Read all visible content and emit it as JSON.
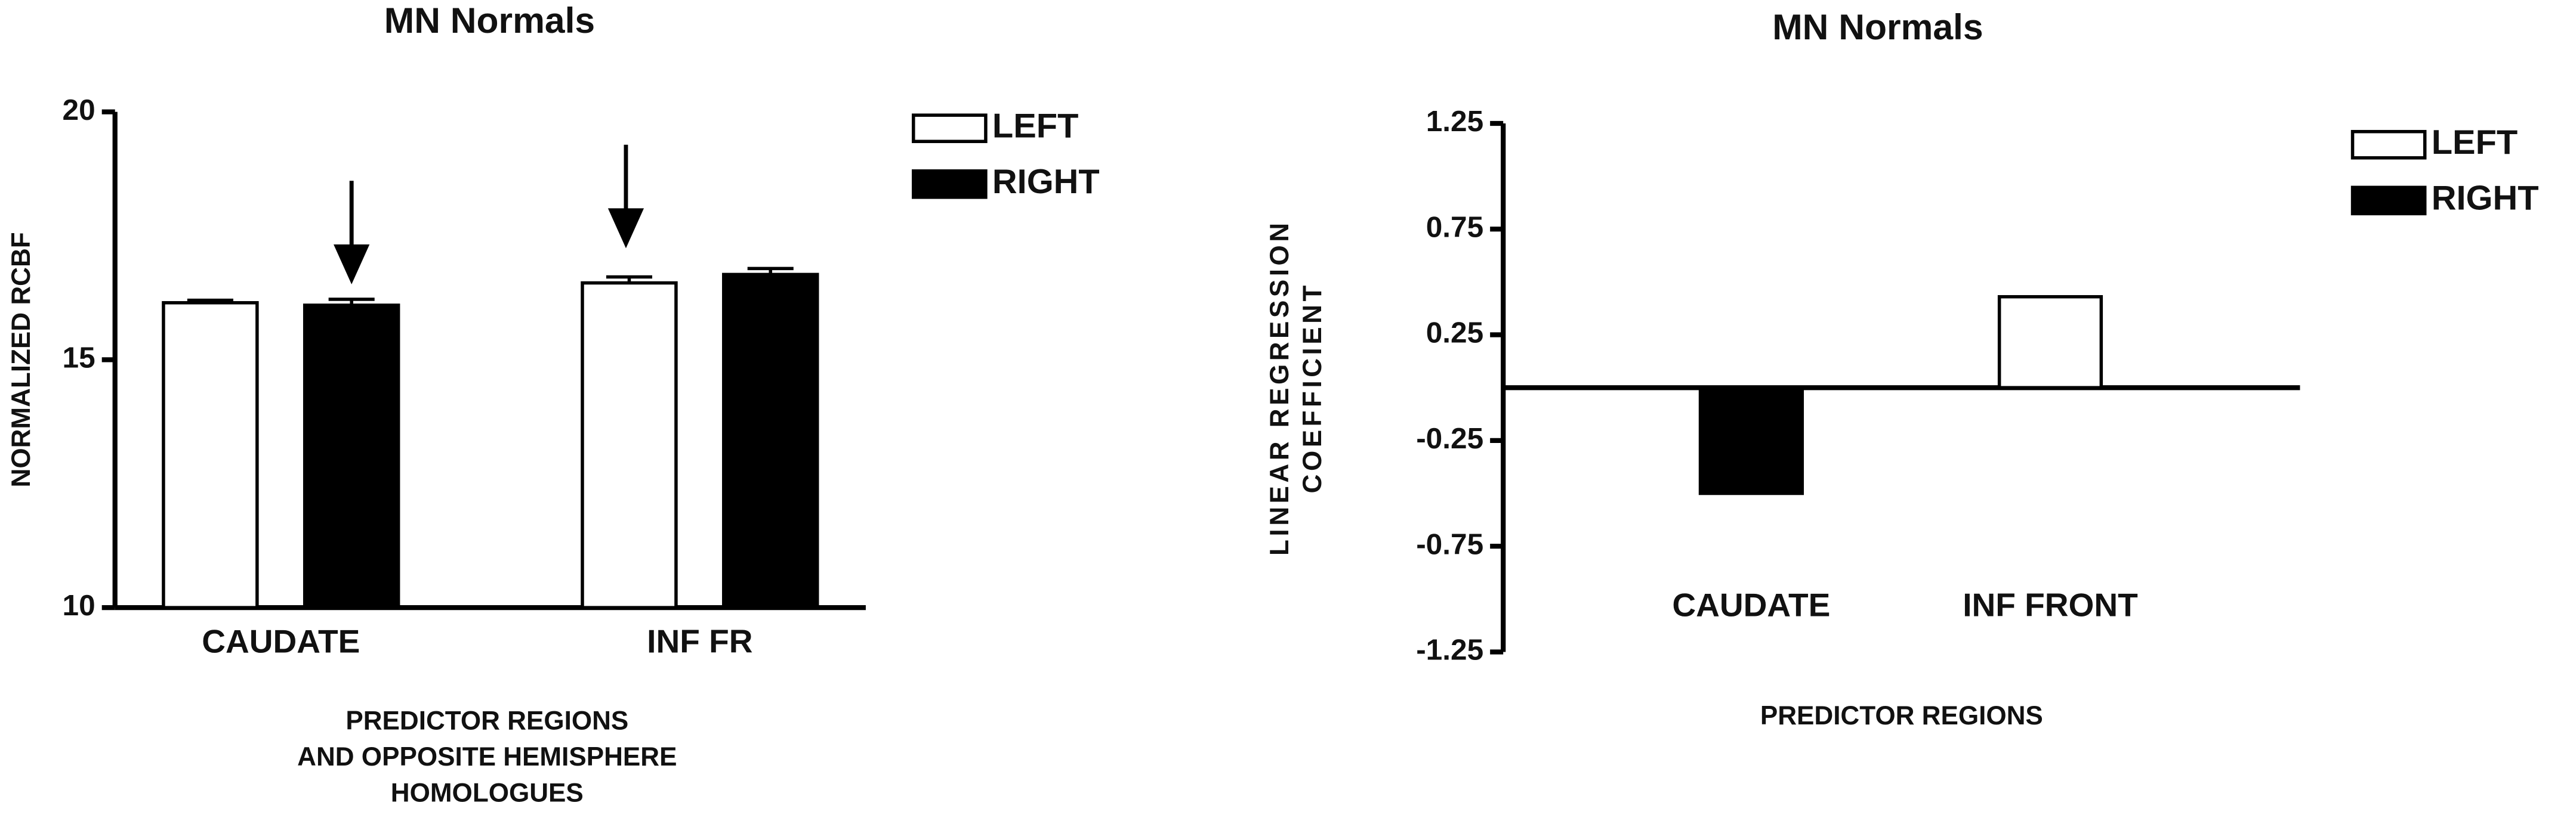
{
  "chart_data": [
    {
      "type": "bar",
      "title": "MN Normals",
      "ylabel": [
        "NORMALIZED RCBF"
      ],
      "xlabel": [
        "PREDICTOR REGIONS",
        "AND OPPOSITE HEMISPHERE",
        "HOMOLOGUES"
      ],
      "categories": [
        "CAUDATE",
        "INF FR"
      ],
      "series": [
        {
          "name": "LEFT",
          "color": "#ffffff",
          "values": [
            16.15,
            16.55
          ],
          "errors": [
            0.05,
            0.12
          ]
        },
        {
          "name": "RIGHT",
          "color": "#000000",
          "values": [
            16.1,
            16.72
          ],
          "errors": [
            0.12,
            0.12
          ]
        }
      ],
      "ylim": [
        10,
        20
      ],
      "yticks": [
        10,
        15,
        20
      ]
    },
    {
      "type": "bar",
      "title": "MN Normals",
      "ylabel": [
        "LINEAR REGRESSION",
        "COEFFICIENT"
      ],
      "xlabel": [
        "PREDICTOR REGIONS"
      ],
      "categories": [
        "CAUDATE",
        "INF FRONT"
      ],
      "series": [
        {
          "name": "LEFT",
          "color": "#ffffff",
          "values": [
            null,
            0.43
          ]
        },
        {
          "name": "RIGHT",
          "color": "#000000",
          "values": [
            -0.5,
            null
          ]
        }
      ],
      "ylim": [
        -1.25,
        1.25
      ],
      "yticks": [
        -1.25,
        -0.75,
        -0.25,
        0.25,
        0.75,
        1.25
      ]
    }
  ]
}
